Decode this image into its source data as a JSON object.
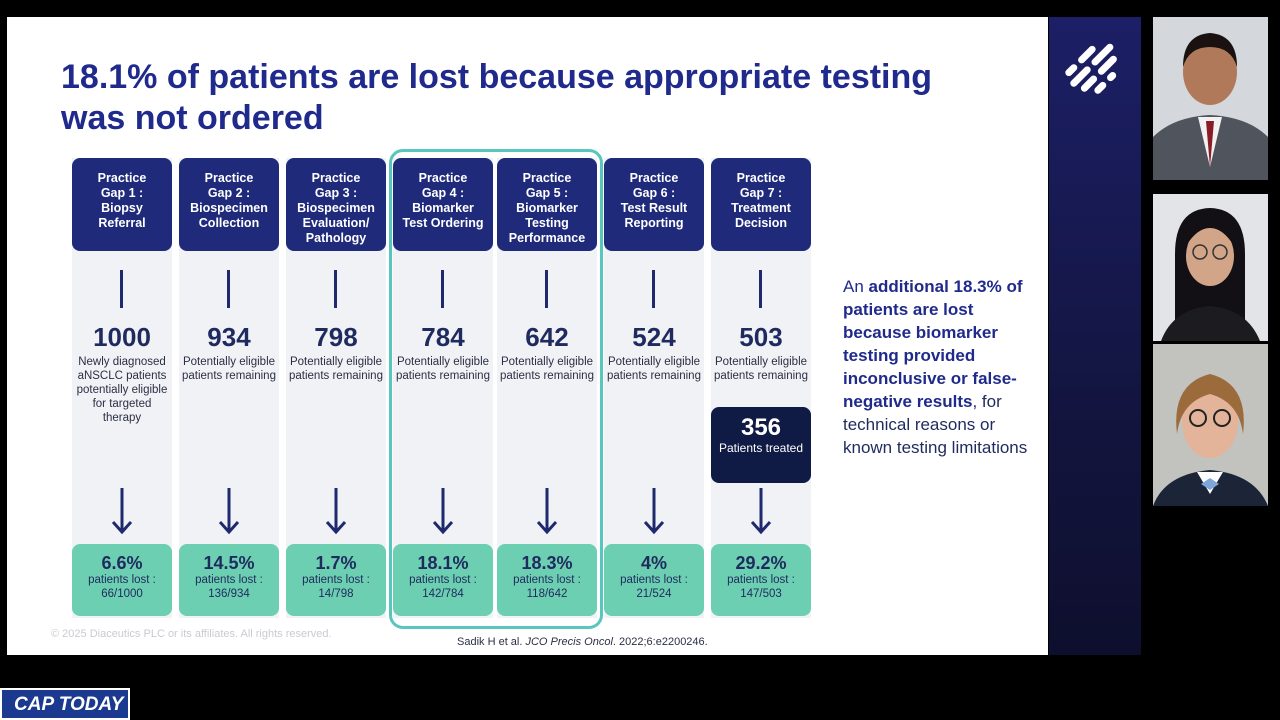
{
  "slide": {
    "title": "18.1% of patients are lost because appropriate testing was not ordered",
    "footer": "© 2025 Diaceutics PLC or its affiliates. All rights reserved.",
    "citation_prefix": "Sadik H et al. ",
    "citation_journal": "JCO Precis Oncol",
    "citation_suffix": ". 2022;6:e2200246."
  },
  "gaps": [
    {
      "header_line1": "Practice",
      "header_line2": "Gap 1 :",
      "header_line3": "Biopsy",
      "header_line4": "Referral",
      "count": "1000",
      "desc": "Newly diagnosed aNSCLC patients potentially eligible for targeted therapy",
      "lost_pct": "6.6%",
      "lost_label": "patients lost :",
      "lost_ratio": "66/1000"
    },
    {
      "header_line1": "Practice",
      "header_line2": "Gap 2 :",
      "header_line3": "Biospecimen",
      "header_line4": "Collection",
      "count": "934",
      "desc": "Potentially eligible patients remaining",
      "lost_pct": "14.5%",
      "lost_label": "patients lost :",
      "lost_ratio": "136/934"
    },
    {
      "header_line1": "Practice",
      "header_line2": "Gap 3 :",
      "header_line3": "Biospecimen",
      "header_line4": "Evaluation/ Pathology",
      "count": "798",
      "desc": "Potentially eligible patients remaining",
      "lost_pct": "1.7%",
      "lost_label": "patients lost :",
      "lost_ratio": "14/798"
    },
    {
      "header_line1": "Practice",
      "header_line2": "Gap 4 :",
      "header_line3": "Biomarker",
      "header_line4": "Test Ordering",
      "count": "784",
      "desc": "Potentially eligible patients remaining",
      "lost_pct": "18.1%",
      "lost_label": "patients lost :",
      "lost_ratio": "142/784"
    },
    {
      "header_line1": "Practice",
      "header_line2": "Gap 5 :",
      "header_line3": "Biomarker",
      "header_line4": "Testing Performance",
      "count": "642",
      "desc": "Potentially eligible patients remaining",
      "lost_pct": "18.3%",
      "lost_label": "patients lost :",
      "lost_ratio": "118/642"
    },
    {
      "header_line1": "Practice",
      "header_line2": "Gap 6 :",
      "header_line3": "Test Result",
      "header_line4": "Reporting",
      "count": "524",
      "desc": "Potentially eligible patients remaining",
      "lost_pct": "4%",
      "lost_label": "patients lost :",
      "lost_ratio": "21/524"
    },
    {
      "header_line1": "Practice",
      "header_line2": "Gap 7 :",
      "header_line3": "Treatment",
      "header_line4": "Decision",
      "count": "503",
      "desc": "Potentially eligible patients remaining",
      "lost_pct": "29.2%",
      "lost_label": "patients lost :",
      "lost_ratio": "147/503"
    }
  ],
  "treated": {
    "count": "356",
    "label": "Patients treated"
  },
  "side_note": {
    "part1": "An ",
    "bold1": "additional 18.3% of patients are lost because biomarker testing provided inconclusive or false-negative results",
    "part2": ", for technical reasons or known testing limitations"
  },
  "watermark": "CAP TODAY",
  "participants": [
    "participant-1",
    "participant-2",
    "participant-3"
  ]
}
